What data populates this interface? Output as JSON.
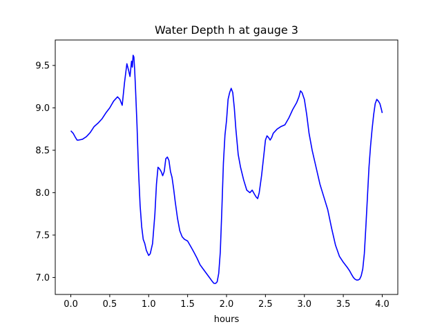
{
  "chart_data": {
    "type": "line",
    "title": "Water Depth h at gauge 3",
    "xlabel": "hours",
    "ylabel": "",
    "xlim": [
      -0.2,
      4.2
    ],
    "ylim": [
      6.8,
      9.8
    ],
    "xticks": [
      0.0,
      0.5,
      1.0,
      1.5,
      2.0,
      2.5,
      3.0,
      3.5,
      4.0
    ],
    "xtick_labels": [
      "0.0",
      "0.5",
      "1.0",
      "1.5",
      "2.0",
      "2.5",
      "3.0",
      "3.5",
      "4.0"
    ],
    "yticks": [
      7.0,
      7.5,
      8.0,
      8.5,
      9.0,
      9.5
    ],
    "ytick_labels": [
      "7.0",
      "7.5",
      "8.0",
      "8.5",
      "9.0",
      "9.5"
    ],
    "grid": false,
    "series": [
      {
        "color": "#0000ff",
        "x": [
          0.0,
          0.03,
          0.06,
          0.08,
          0.1,
          0.15,
          0.2,
          0.25,
          0.3,
          0.35,
          0.4,
          0.45,
          0.5,
          0.55,
          0.6,
          0.63,
          0.66,
          0.69,
          0.72,
          0.74,
          0.76,
          0.78,
          0.79,
          0.8,
          0.81,
          0.82,
          0.83,
          0.85,
          0.87,
          0.89,
          0.91,
          0.93,
          0.95,
          0.97,
          1.0,
          1.02,
          1.05,
          1.08,
          1.1,
          1.12,
          1.14,
          1.16,
          1.18,
          1.2,
          1.22,
          1.24,
          1.26,
          1.28,
          1.3,
          1.32,
          1.34,
          1.37,
          1.4,
          1.43,
          1.46,
          1.5,
          1.55,
          1.58,
          1.62,
          1.66,
          1.7,
          1.74,
          1.78,
          1.82,
          1.84,
          1.86,
          1.88,
          1.9,
          1.92,
          1.94,
          1.96,
          1.98,
          2.0,
          2.02,
          2.04,
          2.06,
          2.08,
          2.1,
          2.12,
          2.15,
          2.18,
          2.22,
          2.26,
          2.3,
          2.33,
          2.36,
          2.38,
          2.4,
          2.42,
          2.45,
          2.48,
          2.5,
          2.52,
          2.54,
          2.56,
          2.58,
          2.6,
          2.65,
          2.7,
          2.75,
          2.8,
          2.85,
          2.9,
          2.93,
          2.95,
          2.97,
          3.0,
          3.03,
          3.06,
          3.1,
          3.15,
          3.2,
          3.25,
          3.3,
          3.35,
          3.4,
          3.45,
          3.5,
          3.55,
          3.58,
          3.61,
          3.63,
          3.65,
          3.67,
          3.69,
          3.71,
          3.73,
          3.75,
          3.77,
          3.79,
          3.81,
          3.83,
          3.85,
          3.87,
          3.89,
          3.91,
          3.93,
          3.95,
          3.97,
          3.99,
          4.0
        ],
        "y": [
          8.73,
          8.7,
          8.65,
          8.62,
          8.62,
          8.63,
          8.66,
          8.71,
          8.78,
          8.82,
          8.87,
          8.94,
          9.0,
          9.08,
          9.13,
          9.1,
          9.03,
          9.3,
          9.52,
          9.45,
          9.37,
          9.55,
          9.48,
          9.62,
          9.6,
          9.45,
          9.25,
          8.8,
          8.25,
          7.85,
          7.6,
          7.45,
          7.4,
          7.32,
          7.26,
          7.28,
          7.4,
          7.75,
          8.1,
          8.3,
          8.28,
          8.25,
          8.2,
          8.25,
          8.4,
          8.42,
          8.38,
          8.25,
          8.18,
          8.05,
          7.9,
          7.7,
          7.55,
          7.48,
          7.45,
          7.43,
          7.35,
          7.3,
          7.23,
          7.15,
          7.1,
          7.05,
          7.0,
          6.95,
          6.93,
          6.93,
          6.95,
          7.05,
          7.3,
          7.8,
          8.35,
          8.68,
          8.85,
          9.1,
          9.18,
          9.23,
          9.18,
          9.0,
          8.75,
          8.45,
          8.3,
          8.15,
          8.03,
          8.0,
          8.03,
          7.98,
          7.95,
          7.93,
          8.0,
          8.2,
          8.45,
          8.62,
          8.67,
          8.65,
          8.62,
          8.65,
          8.7,
          8.75,
          8.78,
          8.8,
          8.88,
          8.98,
          9.06,
          9.13,
          9.2,
          9.18,
          9.1,
          8.92,
          8.7,
          8.5,
          8.3,
          8.1,
          7.95,
          7.8,
          7.58,
          7.38,
          7.25,
          7.18,
          7.12,
          7.08,
          7.03,
          7.0,
          6.98,
          6.97,
          6.97,
          6.98,
          7.02,
          7.1,
          7.28,
          7.6,
          7.95,
          8.3,
          8.55,
          8.75,
          8.92,
          9.05,
          9.1,
          9.08,
          9.05,
          8.98,
          8.94
        ]
      }
    ]
  }
}
